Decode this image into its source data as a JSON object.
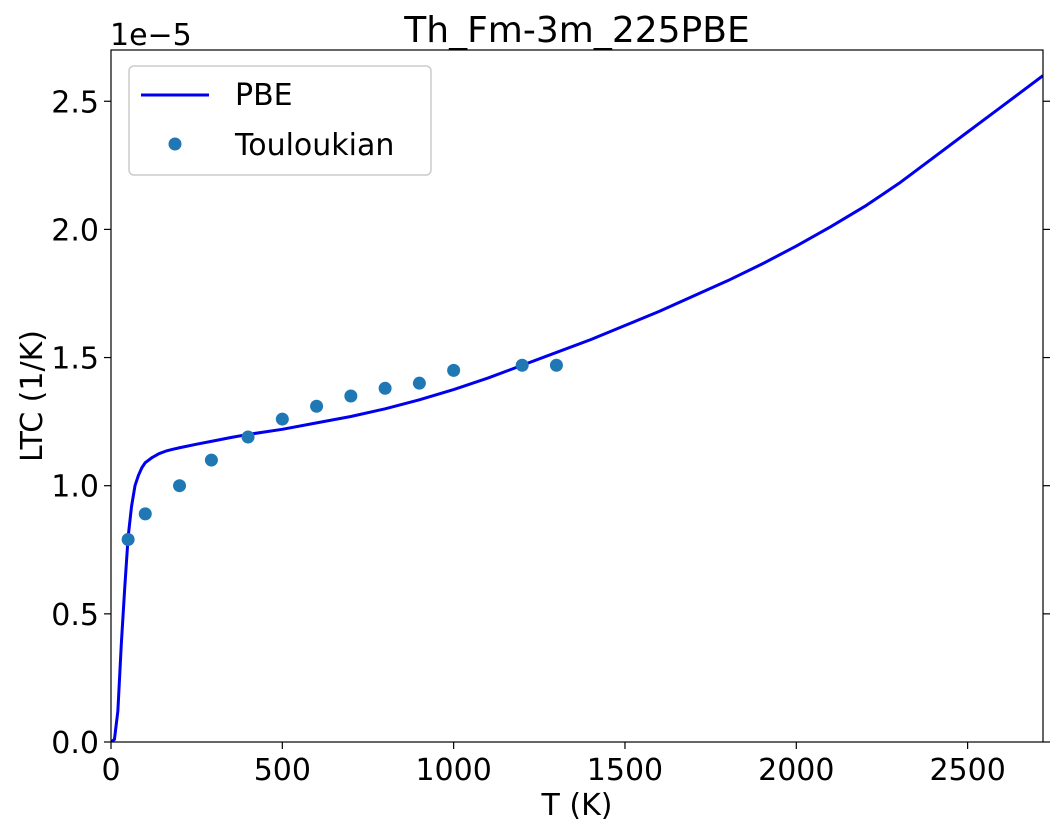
{
  "chart_data": {
    "type": "line",
    "title": "Th_Fm-3m_225PBE",
    "xlabel": "T (K)",
    "ylabel": "LTC (1/K)",
    "y_offset_label": "1e−5",
    "xlim": [
      0,
      2720
    ],
    "ylim": [
      0,
      2.7
    ],
    "x_ticks": [
      0,
      500,
      1000,
      1500,
      2000,
      2500
    ],
    "x_tick_labels": [
      "0",
      "500",
      "1000",
      "1500",
      "2000",
      "2500"
    ],
    "y_ticks": [
      0,
      0.5,
      1.0,
      1.5,
      2.0,
      2.5
    ],
    "y_tick_labels": [
      "0.0",
      "0.5",
      "1.0",
      "1.5",
      "2.0",
      "2.5"
    ],
    "legend_position": "top-left",
    "series": [
      {
        "name": "PBE",
        "kind": "line",
        "color": "#0000ee",
        "x": [
          0,
          10,
          20,
          30,
          40,
          50,
          60,
          70,
          80,
          90,
          100,
          120,
          140,
          160,
          180,
          200,
          250,
          300,
          350,
          400,
          450,
          500,
          600,
          700,
          800,
          900,
          1000,
          1100,
          1200,
          1300,
          1400,
          1500,
          1600,
          1700,
          1800,
          1900,
          2000,
          2100,
          2200,
          2300,
          2400,
          2500,
          2600,
          2720
        ],
        "y": [
          0,
          0.01,
          0.12,
          0.38,
          0.6,
          0.8,
          0.92,
          1.0,
          1.04,
          1.07,
          1.09,
          1.11,
          1.125,
          1.135,
          1.142,
          1.148,
          1.162,
          1.175,
          1.188,
          1.2,
          1.21,
          1.22,
          1.245,
          1.27,
          1.3,
          1.335,
          1.375,
          1.42,
          1.47,
          1.52,
          1.57,
          1.625,
          1.68,
          1.74,
          1.8,
          1.865,
          1.935,
          2.01,
          2.09,
          2.18,
          2.28,
          2.38,
          2.48,
          2.6
        ]
      },
      {
        "name": "Touloukian",
        "kind": "scatter",
        "color": "#1f77b4",
        "x": [
          50,
          100,
          200,
          293,
          400,
          500,
          600,
          700,
          800,
          900,
          1000,
          1200,
          1300
        ],
        "y": [
          0.79,
          0.89,
          1.0,
          1.1,
          1.19,
          1.26,
          1.31,
          1.35,
          1.38,
          1.4,
          1.45,
          1.47,
          1.47
        ]
      }
    ]
  }
}
